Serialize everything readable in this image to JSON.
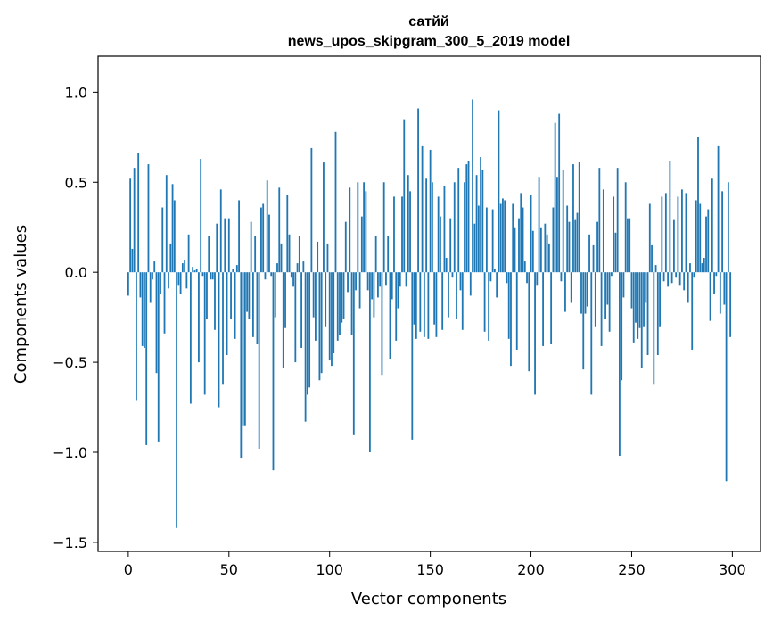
{
  "chart_data": {
    "type": "bar",
    "title_line1": "сатйй",
    "title_line2": "news_upos_skipgram_300_5_2019 model",
    "xlabel": "Vector components",
    "ylabel": "Components values",
    "xlim": [
      -15,
      314
    ],
    "ylim": [
      -1.55,
      1.2
    ],
    "xticks": [
      0,
      50,
      100,
      150,
      200,
      250,
      300
    ],
    "xtick_labels": [
      "0",
      "50",
      "100",
      "150",
      "200",
      "250",
      "300"
    ],
    "yticks": [
      -1.5,
      -1.0,
      -0.5,
      0.0,
      0.5,
      1.0
    ],
    "ytick_labels": [
      "−1.5",
      "−1.0",
      "−0.5",
      "0.0",
      "0.5",
      "1.0"
    ],
    "bar_color": "#1f77b4",
    "values": [
      -0.13,
      0.52,
      0.13,
      0.58,
      -0.71,
      0.66,
      -0.14,
      -0.41,
      -0.42,
      -0.96,
      0.6,
      -0.17,
      -0.04,
      0.06,
      -0.56,
      -0.94,
      -0.12,
      0.36,
      -0.34,
      0.54,
      -0.09,
      0.16,
      0.49,
      0.4,
      -1.42,
      -0.07,
      -0.12,
      0.05,
      0.07,
      -0.09,
      0.21,
      -0.73,
      0.03,
      0.01,
      0.02,
      -0.5,
      0.63,
      -0.02,
      -0.68,
      -0.26,
      0.2,
      -0.04,
      -0.04,
      -0.32,
      0.27,
      -0.75,
      0.46,
      -0.62,
      0.3,
      -0.46,
      0.3,
      -0.26,
      0.02,
      -0.37,
      0.04,
      0.4,
      -1.03,
      -0.85,
      -0.85,
      -0.22,
      -0.26,
      0.28,
      -0.36,
      0.2,
      -0.4,
      -0.98,
      0.36,
      0.38,
      -0.04,
      0.51,
      0.32,
      -0.02,
      -1.1,
      -0.25,
      0.05,
      0.47,
      0.16,
      -0.53,
      -0.31,
      0.43,
      0.21,
      -0.03,
      -0.08,
      -0.5,
      0.05,
      0.2,
      -0.42,
      0.06,
      -0.83,
      -0.68,
      -0.64,
      0.69,
      -0.25,
      -0.38,
      0.17,
      -0.6,
      -0.56,
      0.61,
      -0.3,
      0.16,
      -0.49,
      -0.52,
      -0.45,
      0.78,
      -0.38,
      -0.35,
      -0.28,
      -0.26,
      0.28,
      -0.11,
      0.47,
      -0.35,
      -0.9,
      -0.1,
      0.5,
      -0.2,
      0.31,
      0.5,
      0.45,
      -0.1,
      -1.0,
      -0.15,
      -0.25,
      0.2,
      -0.14,
      -0.08,
      -0.57,
      0.5,
      -0.07,
      0.2,
      -0.48,
      -0.15,
      0.42,
      -0.38,
      -0.2,
      -0.08,
      0.42,
      0.85,
      -0.08,
      0.54,
      0.45,
      -0.93,
      -0.29,
      -0.37,
      0.91,
      -0.33,
      0.7,
      -0.36,
      0.52,
      -0.37,
      0.68,
      0.5,
      -0.29,
      -0.36,
      0.42,
      0.31,
      -0.32,
      0.48,
      0.08,
      -0.25,
      0.3,
      -0.03,
      0.5,
      -0.26,
      0.58,
      -0.1,
      -0.32,
      0.5,
      0.6,
      0.62,
      -0.13,
      0.96,
      0.27,
      0.54,
      0.37,
      0.64,
      0.57,
      -0.33,
      0.36,
      -0.38,
      -0.05,
      0.35,
      0.02,
      -0.14,
      0.9,
      0.38,
      0.41,
      0.4,
      -0.06,
      -0.37,
      -0.52,
      0.38,
      0.25,
      -0.43,
      0.3,
      0.44,
      0.36,
      0.06,
      -0.06,
      -0.55,
      0.43,
      0.23,
      -0.68,
      -0.07,
      0.53,
      0.25,
      -0.41,
      0.27,
      0.21,
      0.16,
      -0.4,
      0.36,
      0.83,
      0.53,
      0.88,
      -0.05,
      0.57,
      -0.22,
      0.37,
      0.28,
      -0.17,
      0.6,
      0.29,
      0.33,
      0.61,
      -0.23,
      -0.54,
      -0.23,
      -0.19,
      0.21,
      -0.68,
      0.15,
      -0.3,
      0.28,
      0.58,
      -0.41,
      0.46,
      -0.26,
      -0.18,
      -0.33,
      -0.02,
      0.42,
      0.22,
      0.58,
      -1.02,
      -0.6,
      -0.14,
      0.5,
      0.3,
      0.3,
      -0.2,
      -0.39,
      -0.28,
      -0.37,
      -0.31,
      -0.53,
      -0.3,
      -0.17,
      -0.46,
      0.38,
      0.15,
      -0.62,
      0.04,
      -0.46,
      -0.3,
      0.42,
      -0.05,
      0.44,
      -0.08,
      0.62,
      -0.06,
      0.29,
      -0.03,
      0.42,
      -0.07,
      0.46,
      -0.1,
      0.44,
      -0.17,
      0.05,
      -0.43,
      -0.03,
      0.4,
      0.75,
      0.38,
      0.05,
      0.08,
      0.31,
      0.35,
      -0.27,
      0.52,
      -0.12,
      -0.02,
      0.7,
      -0.23,
      0.45,
      -0.18,
      -1.16,
      0.5,
      -0.36
    ]
  }
}
